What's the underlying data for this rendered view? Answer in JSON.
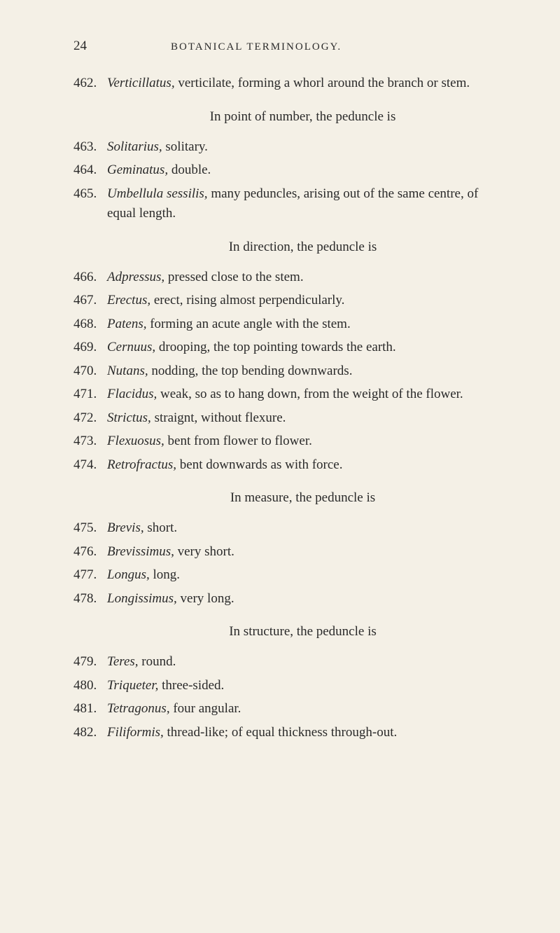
{
  "header": {
    "page_number": "24",
    "title": "BOTANICAL TERMINOLOGY."
  },
  "entries": [
    {
      "number": "462.",
      "term": "Verticillatus,",
      "def": " verticilate, forming a whorl around the branch or stem."
    }
  ],
  "section1_heading": "In point of number, the peduncle is",
  "section1_entries": [
    {
      "number": "463.",
      "term": "Solitarius,",
      "def": " solitary."
    },
    {
      "number": "464.",
      "term": "Geminatus,",
      "def": " double."
    },
    {
      "number": "465.",
      "term": "Umbellula sessilis,",
      "def": " many peduncles, arising out of the same centre, of equal length."
    }
  ],
  "section2_heading": "In direction, the peduncle is",
  "section2_entries": [
    {
      "number": "466.",
      "term": "Adpressus,",
      "def": " pressed close to the stem."
    },
    {
      "number": "467.",
      "term": "Erectus,",
      "def": " erect, rising almost perpendicularly."
    },
    {
      "number": "468.",
      "term": "Patens,",
      "def": " forming an acute angle with the stem."
    },
    {
      "number": "469.",
      "term": "Cernuus,",
      "def": " drooping, the top pointing towards the earth."
    },
    {
      "number": "470.",
      "term": "Nutans,",
      "def": " nodding, the top bending downwards."
    },
    {
      "number": "471.",
      "term": "Flacidus,",
      "def": " weak, so as to hang down, from the weight of the flower."
    },
    {
      "number": "472.",
      "term": "Strictus,",
      "def": " straignt, without flexure."
    },
    {
      "number": "473.",
      "term": "Flexuosus,",
      "def": " bent from flower to flower."
    },
    {
      "number": "474.",
      "term": "Retrofractus,",
      "def": " bent downwards as with force."
    }
  ],
  "section3_heading": "In measure, the peduncle is",
  "section3_entries": [
    {
      "number": "475.",
      "term": "Brevis,",
      "def": " short."
    },
    {
      "number": "476.",
      "term": "Brevissimus,",
      "def": " very short."
    },
    {
      "number": "477.",
      "term": "Longus,",
      "def": " long."
    },
    {
      "number": "478.",
      "term": "Longissimus,",
      "def": " very long."
    }
  ],
  "section4_heading": "In structure, the peduncle is",
  "section4_entries": [
    {
      "number": "479.",
      "term": "Teres,",
      "def": " round."
    },
    {
      "number": "480.",
      "term": "Triqueter,",
      "def": " three-sided."
    },
    {
      "number": "481.",
      "term": "Tetragonus,",
      "def": " four angular."
    },
    {
      "number": "482.",
      "term": "Filiformis,",
      "def": " thread-like; of equal thickness through-out."
    }
  ]
}
